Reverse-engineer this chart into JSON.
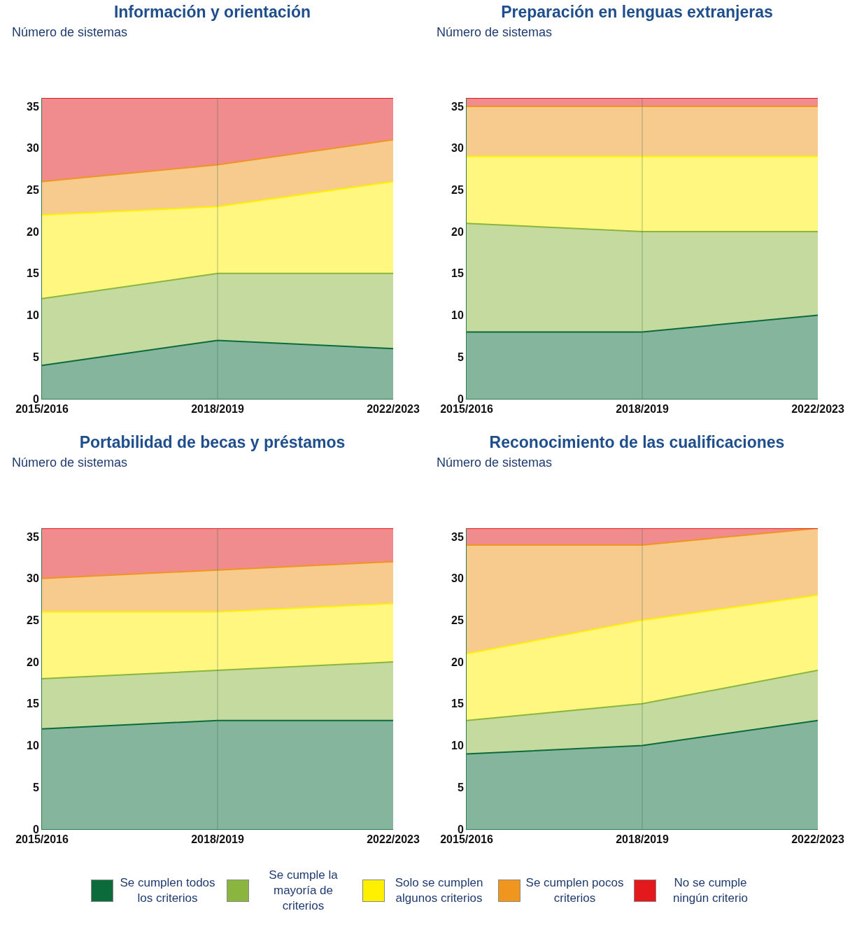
{
  "chart_data": [
    {
      "type": "area",
      "title": "Información y orientación",
      "ylabel": "Número de sistemas",
      "categories": [
        "2015/2016",
        "2018/2019",
        "2022/2023"
      ],
      "stacked": true,
      "ylim": [
        0,
        36
      ],
      "yticks": [
        0,
        5,
        10,
        15,
        20,
        25,
        30,
        35
      ],
      "ref_lines": [
        {
          "axis": "x",
          "value": "2018/2019",
          "color": "#3c6e50"
        }
      ],
      "legend": "bottom",
      "series": [
        {
          "name": "Se cumplen todos los criterios",
          "color": "#0b6b3a",
          "values": [
            4,
            7,
            6
          ]
        },
        {
          "name": "Se cumple la mayoría de criterios",
          "color": "#8ab53f",
          "values": [
            8,
            8,
            9
          ]
        },
        {
          "name": "Solo se cumplen algunos criterios",
          "color": "#ffef00",
          "values": [
            10,
            8,
            11
          ]
        },
        {
          "name": "Se cumplen pocos criterios",
          "color": "#f0961e",
          "values": [
            4,
            5,
            5
          ]
        },
        {
          "name": "No se cumple ningún criterio",
          "color": "#e3191e",
          "values": [
            10,
            8,
            5
          ]
        }
      ]
    },
    {
      "type": "area",
      "title": "Preparación en lenguas extranjeras",
      "ylabel": "Número de sistemas",
      "categories": [
        "2015/2016",
        "2018/2019",
        "2022/2023"
      ],
      "stacked": true,
      "ylim": [
        0,
        36
      ],
      "yticks": [
        0,
        5,
        10,
        15,
        20,
        25,
        30,
        35
      ],
      "ref_lines": [
        {
          "axis": "x",
          "value": "2018/2019",
          "color": "#3c6e50"
        }
      ],
      "series": [
        {
          "color": "#0b6b3a",
          "values": [
            8,
            8,
            10
          ]
        },
        {
          "color": "#8ab53f",
          "values": [
            13,
            12,
            10
          ]
        },
        {
          "color": "#ffef00",
          "values": [
            8,
            9,
            9
          ]
        },
        {
          "color": "#f0961e",
          "values": [
            6,
            6,
            6
          ]
        },
        {
          "color": "#e3191e",
          "values": [
            1,
            1,
            1
          ]
        }
      ]
    },
    {
      "type": "area",
      "title": "Portabilidad de becas y préstamos",
      "ylabel": "Número de sistemas",
      "categories": [
        "2015/2016",
        "2018/2019",
        "2022/2023"
      ],
      "stacked": true,
      "ylim": [
        0,
        36
      ],
      "yticks": [
        0,
        5,
        10,
        15,
        20,
        25,
        30,
        35
      ],
      "ref_lines": [
        {
          "axis": "x",
          "value": "2018/2019",
          "color": "#3c6e50"
        }
      ],
      "series": [
        {
          "color": "#0b6b3a",
          "values": [
            12,
            13,
            13
          ]
        },
        {
          "color": "#8ab53f",
          "values": [
            6,
            6,
            7
          ]
        },
        {
          "color": "#ffef00",
          "values": [
            8,
            7,
            7
          ]
        },
        {
          "color": "#f0961e",
          "values": [
            4,
            5,
            5
          ]
        },
        {
          "color": "#e3191e",
          "values": [
            6,
            5,
            4
          ]
        }
      ]
    },
    {
      "type": "area",
      "title": "Reconocimiento de las cualificaciones",
      "ylabel": "Número de sistemas",
      "categories": [
        "2015/2016",
        "2018/2019",
        "2022/2023"
      ],
      "stacked": true,
      "ylim": [
        0,
        36
      ],
      "yticks": [
        0,
        5,
        10,
        15,
        20,
        25,
        30,
        35
      ],
      "ref_lines": [
        {
          "axis": "x",
          "value": "2018/2019",
          "color": "#3c6e50"
        }
      ],
      "series": [
        {
          "color": "#0b6b3a",
          "values": [
            9,
            10,
            13
          ]
        },
        {
          "color": "#8ab53f",
          "values": [
            4,
            5,
            6
          ]
        },
        {
          "color": "#ffef00",
          "values": [
            8,
            10,
            9
          ]
        },
        {
          "color": "#f0961e",
          "values": [
            13,
            9,
            8
          ]
        },
        {
          "color": "#e3191e",
          "values": [
            2,
            2,
            0
          ]
        }
      ]
    }
  ]
}
